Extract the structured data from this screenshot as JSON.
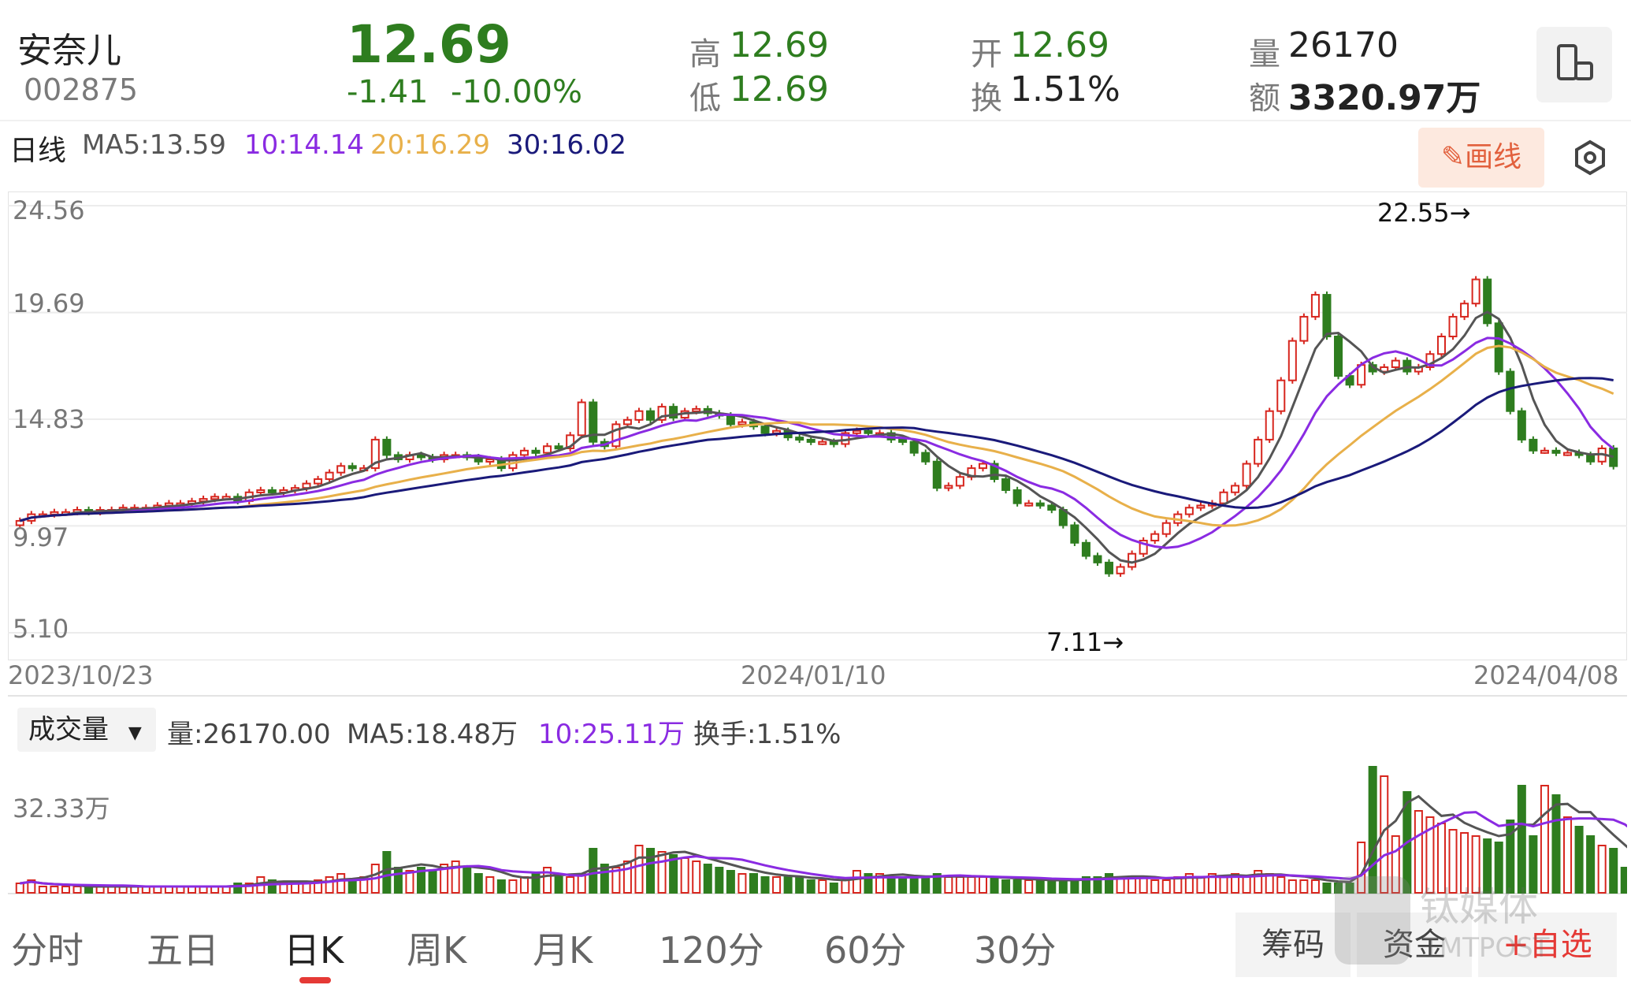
{
  "stock": {
    "name": "安奈儿",
    "code": "002875"
  },
  "quote": {
    "price": "12.69",
    "change": "-1.41",
    "change_pct": "-10.00%",
    "high_label": "高",
    "high": "12.69",
    "low_label": "低",
    "low": "12.69",
    "open_label": "开",
    "open": "12.69",
    "turnover_label": "换",
    "turnover": "1.51%",
    "volume_label": "量",
    "volume": "26170",
    "amount_label": "额",
    "amount": "3320.97万"
  },
  "kline_header": {
    "period": "日线",
    "ma5": "MA5:13.59",
    "ma10": "10:14.14",
    "ma20": "20:16.29",
    "ma30": "30:16.02",
    "draw_label": "画线"
  },
  "price_axis": {
    "labels": [
      "24.56",
      "19.69",
      "14.83",
      "9.97",
      "5.10"
    ]
  },
  "date_axis": {
    "labels": [
      "2023/10/23",
      "2024/01/10",
      "2024/04/08"
    ]
  },
  "annotations": {
    "high": "22.55→",
    "low": "7.11→"
  },
  "volume_header": {
    "selector": "成交量",
    "volume": "量:26170.00",
    "ma5": "MA5:18.48万",
    "ma10": "10:25.11万",
    "turnover": "换手:1.51%",
    "axis_label": "32.33万"
  },
  "tabs": [
    {
      "label": "分时"
    },
    {
      "label": "五日"
    },
    {
      "label": "日K"
    },
    {
      "label": "周K"
    },
    {
      "label": "月K"
    },
    {
      "label": "120分"
    },
    {
      "label": "60分"
    },
    {
      "label": "30分"
    }
  ],
  "bottom_buttons": {
    "chips": "筹码",
    "funds": "资金",
    "watchlist": "+自选"
  },
  "watermark": {
    "text1": "钛媒体",
    "text2": "TMTPOST"
  },
  "icons": {
    "landscape": "landscape-toggle-icon",
    "settings": "settings-hexagon-icon",
    "pen": "pen-icon",
    "dropdown": "dropdown-arrow-icon"
  },
  "colors": {
    "up": "#d7261e",
    "down": "#2e7d1f",
    "ma5": "#555555",
    "ma10": "#8a2be2",
    "ma20": "#e8b04a",
    "ma30": "#1a1a7a"
  },
  "chart_data": {
    "type": "candlestick",
    "y_range": [
      5.1,
      24.56
    ],
    "x_range": [
      "2023/10/23",
      "2024/04/08"
    ],
    "max_point": 22.55,
    "min_point": 7.11,
    "ma_last": {
      "MA5": 13.59,
      "MA10": 14.14,
      "MA20": 16.29,
      "MA30": 16.02
    },
    "close_series": [
      10.2,
      10.5,
      10.5,
      10.6,
      10.6,
      10.7,
      10.6,
      10.7,
      10.7,
      10.8,
      10.8,
      10.8,
      10.9,
      11.0,
      11.0,
      11.1,
      11.2,
      11.3,
      11.3,
      11.1,
      11.5,
      11.6,
      11.5,
      11.6,
      11.7,
      11.9,
      12.1,
      12.4,
      12.7,
      12.6,
      12.6,
      13.9,
      13.2,
      13.0,
      13.2,
      13.1,
      13.0,
      13.2,
      13.2,
      13.1,
      12.9,
      13.0,
      12.6,
      13.2,
      13.4,
      13.3,
      13.6,
      13.5,
      14.1,
      15.6,
      13.8,
      13.6,
      14.6,
      14.8,
      15.2,
      14.8,
      15.4,
      14.9,
      15.2,
      15.3,
      15.1,
      15.0,
      14.6,
      14.7,
      14.5,
      14.2,
      14.3,
      14.0,
      13.9,
      13.8,
      13.8,
      13.7,
      14.2,
      14.3,
      14.2,
      14.2,
      13.9,
      13.8,
      13.3,
      12.9,
      11.7,
      11.8,
      12.2,
      12.6,
      12.8,
      12.1,
      11.6,
      11.0,
      11.0,
      10.9,
      10.7,
      10.0,
      9.2,
      8.6,
      8.3,
      7.8,
      8.1,
      8.7,
      9.3,
      9.6,
      10.1,
      10.5,
      10.8,
      10.9,
      11.0,
      11.5,
      11.8,
      12.8,
      13.9,
      15.2,
      16.6,
      18.4,
      19.5,
      20.5,
      18.6,
      16.8,
      16.4,
      17.3,
      17.0,
      17.2,
      17.5,
      17.0,
      17.2,
      17.8,
      18.6,
      19.5,
      20.1,
      21.2,
      19.2,
      17.0,
      15.2,
      13.9,
      13.4,
      13.4,
      13.3,
      13.3,
      13.2,
      12.9,
      13.5,
      12.69
    ],
    "volume_unit": "万",
    "volume_ref": "32.33万",
    "volume_series": [
      3,
      4,
      2,
      2,
      2,
      2,
      2,
      2,
      2,
      2,
      2,
      2,
      2,
      2,
      2,
      2,
      2,
      2,
      2,
      3,
      3,
      5,
      4,
      3,
      3,
      3,
      4,
      5,
      6,
      4,
      5,
      9,
      13,
      8,
      7,
      8,
      7,
      9,
      10,
      8,
      6,
      5,
      4,
      4,
      5,
      6,
      8,
      5,
      5,
      6,
      14,
      9,
      8,
      10,
      15,
      14,
      13,
      12,
      11,
      10,
      9,
      8,
      7,
      6,
      6,
      5,
      5,
      5,
      5,
      4,
      4,
      3,
      4,
      7,
      6,
      6,
      5,
      5,
      5,
      5,
      6,
      5,
      5,
      5,
      5,
      5,
      4,
      4,
      4,
      4,
      4,
      4,
      4,
      5,
      5,
      6,
      5,
      5,
      5,
      4,
      4,
      5,
      6,
      5,
      6,
      5,
      6,
      5,
      7,
      6,
      5,
      4,
      4,
      4,
      3,
      3,
      3,
      16,
      40,
      37,
      18,
      32,
      26,
      24,
      22,
      20,
      19,
      18,
      17,
      16,
      23,
      34,
      18,
      34,
      31,
      24,
      21,
      18,
      15,
      14,
      8,
      5
    ]
  }
}
